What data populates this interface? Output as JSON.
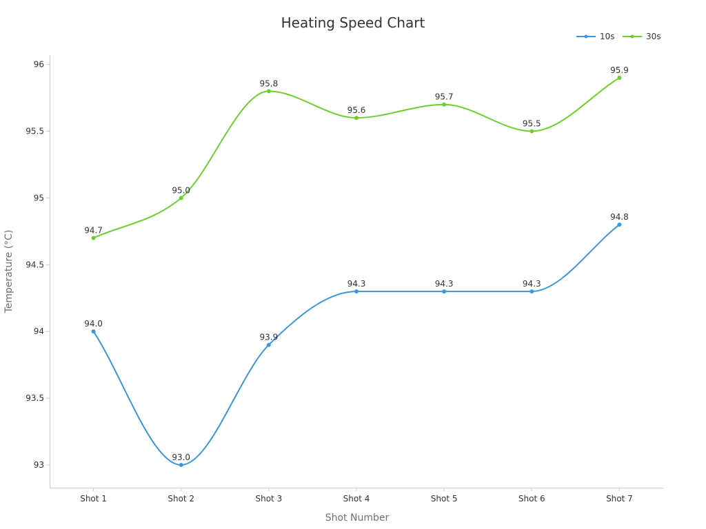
{
  "chart_data": {
    "type": "line",
    "title": "Heating Speed Chart",
    "xlabel": "Shot Number",
    "ylabel": "Temperature (°C)",
    "categories": [
      "Shot 1",
      "Shot 2",
      "Shot 3",
      "Shot 4",
      "Shot 5",
      "Shot 6",
      "Shot 7"
    ],
    "ylim": [
      92.83,
      96.07
    ],
    "yticks": [
      93,
      93.5,
      94,
      94.5,
      95,
      95.5,
      96
    ],
    "ytick_labels": [
      "93",
      "93.5",
      "94",
      "94.5",
      "95",
      "95.5",
      "96"
    ],
    "grid": false,
    "legend_position": "top-right",
    "smooth": true,
    "series": [
      {
        "name": "10s",
        "color": "#3a96dd",
        "values": [
          94.0,
          93.0,
          93.9,
          94.3,
          94.3,
          94.3,
          94.8
        ],
        "labels": [
          "94.0",
          "93.0",
          "93.9",
          "94.3",
          "94.3",
          "94.3",
          "94.8"
        ]
      },
      {
        "name": "30s",
        "color": "#6ccf2e",
        "values": [
          94.7,
          95.0,
          95.8,
          95.6,
          95.7,
          95.5,
          95.9
        ],
        "labels": [
          "94.7",
          "95.0",
          "95.8",
          "95.6",
          "95.7",
          "95.5",
          "95.9"
        ]
      }
    ]
  }
}
